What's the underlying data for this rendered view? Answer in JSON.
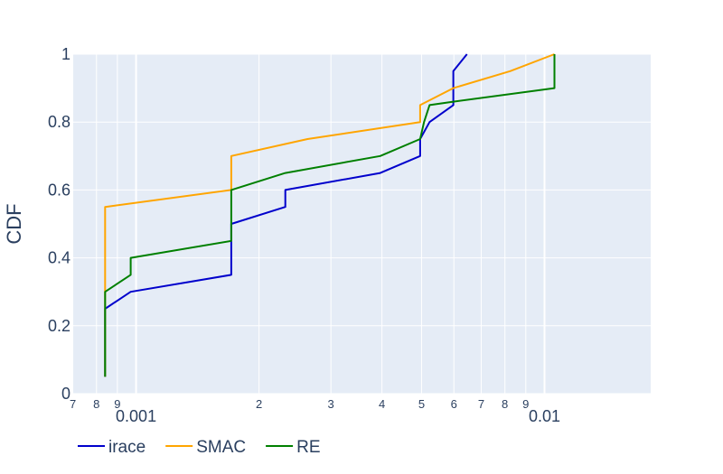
{
  "chart_data": {
    "type": "line",
    "line_shape": "step",
    "xscale": "log",
    "xlim": [
      0.000698,
      0.0182
    ],
    "ylim": [
      0,
      1
    ],
    "ylabel": "CDF",
    "xlabel": "",
    "grid": true,
    "legend_position": "bottom-left",
    "legend_orientation": "horizontal",
    "plot_background": "#e5ecf6",
    "x_major_ticks": [
      {
        "value": 0.001,
        "label": "0.001"
      },
      {
        "value": 0.01,
        "label": "0.01"
      }
    ],
    "x_minor_ticks": [
      {
        "value": 0.0007,
        "label": "7"
      },
      {
        "value": 0.0008,
        "label": "8"
      },
      {
        "value": 0.0009,
        "label": "9"
      },
      {
        "value": 0.002,
        "label": "2"
      },
      {
        "value": 0.003,
        "label": "3"
      },
      {
        "value": 0.004,
        "label": "4"
      },
      {
        "value": 0.005,
        "label": "5"
      },
      {
        "value": 0.006,
        "label": "6"
      },
      {
        "value": 0.007,
        "label": "7"
      },
      {
        "value": 0.008,
        "label": "8"
      },
      {
        "value": 0.009,
        "label": "9"
      }
    ],
    "y_ticks": [
      {
        "value": 0,
        "label": "0"
      },
      {
        "value": 0.2,
        "label": "0.2"
      },
      {
        "value": 0.4,
        "label": "0.4"
      },
      {
        "value": 0.6,
        "label": "0.6"
      },
      {
        "value": 0.8,
        "label": "0.8"
      },
      {
        "value": 1,
        "label": "1"
      }
    ],
    "series": [
      {
        "name": "irace",
        "color": "#0000cc",
        "points": [
          [
            0.00084,
            0.05
          ],
          [
            0.00084,
            0.25
          ],
          [
            0.00097,
            0.3
          ],
          [
            0.00171,
            0.35
          ],
          [
            0.00171,
            0.5
          ],
          [
            0.00232,
            0.55
          ],
          [
            0.00232,
            0.6
          ],
          [
            0.00396,
            0.65
          ],
          [
            0.00496,
            0.7
          ],
          [
            0.00496,
            0.75
          ],
          [
            0.00523,
            0.8
          ],
          [
            0.00598,
            0.85
          ],
          [
            0.00598,
            0.95
          ],
          [
            0.00646,
            1.0
          ]
        ]
      },
      {
        "name": "SMAC",
        "color": "#ffa500",
        "points": [
          [
            0.00084,
            0.05
          ],
          [
            0.00084,
            0.55
          ],
          [
            0.00171,
            0.6
          ],
          [
            0.00171,
            0.7
          ],
          [
            0.00263,
            0.75
          ],
          [
            0.00496,
            0.8
          ],
          [
            0.00496,
            0.85
          ],
          [
            0.00598,
            0.9
          ],
          [
            0.00824,
            0.95
          ],
          [
            0.01058,
            1.0
          ]
        ]
      },
      {
        "name": "RE",
        "color": "#008000",
        "points": [
          [
            0.00084,
            0.05
          ],
          [
            0.00084,
            0.3
          ],
          [
            0.00097,
            0.35
          ],
          [
            0.00097,
            0.4
          ],
          [
            0.00171,
            0.45
          ],
          [
            0.00171,
            0.6
          ],
          [
            0.00232,
            0.65
          ],
          [
            0.00396,
            0.7
          ],
          [
            0.00496,
            0.75
          ],
          [
            0.00507,
            0.8
          ],
          [
            0.00523,
            0.85
          ],
          [
            0.00598,
            0.86
          ],
          [
            0.01058,
            0.9
          ],
          [
            0.01058,
            1.0
          ]
        ]
      }
    ]
  }
}
